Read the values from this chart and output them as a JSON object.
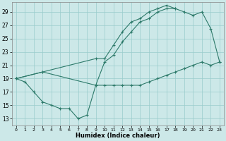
{
  "xlabel": "Humidex (Indice chaleur)",
  "bg_color": "#cce8e8",
  "grid_color": "#99cccc",
  "line_color": "#2d7a6a",
  "xlim": [
    -0.5,
    23.5
  ],
  "ylim": [
    12.0,
    30.5
  ],
  "xticks": [
    0,
    1,
    2,
    3,
    4,
    5,
    6,
    7,
    8,
    9,
    10,
    11,
    12,
    13,
    14,
    15,
    16,
    17,
    18,
    19,
    20,
    21,
    22,
    23
  ],
  "yticks": [
    13,
    15,
    17,
    19,
    21,
    23,
    25,
    27,
    29
  ],
  "line1_x": [
    0,
    1,
    2,
    3,
    4,
    5,
    6,
    7,
    8,
    9,
    10,
    11,
    12,
    13,
    14,
    15,
    16,
    17,
    18,
    19,
    20,
    21,
    22,
    23
  ],
  "line1_y": [
    19.0,
    18.5,
    17.0,
    15.5,
    15.0,
    14.5,
    14.5,
    13.0,
    13.5,
    18.0,
    18.0,
    18.0,
    18.0,
    18.0,
    18.0,
    18.5,
    19.0,
    19.5,
    20.0,
    20.5,
    21.0,
    21.5,
    21.0,
    21.5
  ],
  "line2_x": [
    0,
    3,
    9,
    10,
    11,
    12,
    13,
    14,
    15,
    16,
    17,
    18,
    19,
    20,
    21,
    22,
    23
  ],
  "line2_y": [
    19.0,
    20.0,
    18.0,
    21.5,
    22.5,
    24.5,
    26.0,
    27.5,
    28.0,
    29.0,
    29.5,
    29.5,
    29.0,
    28.5,
    29.0,
    26.5,
    21.5
  ],
  "line3_x": [
    0,
    3,
    9,
    10,
    11,
    12,
    13,
    14,
    15,
    16,
    17,
    18
  ],
  "line3_y": [
    19.0,
    20.0,
    22.0,
    22.0,
    24.0,
    26.0,
    27.5,
    28.0,
    29.0,
    29.5,
    30.0,
    29.5
  ]
}
